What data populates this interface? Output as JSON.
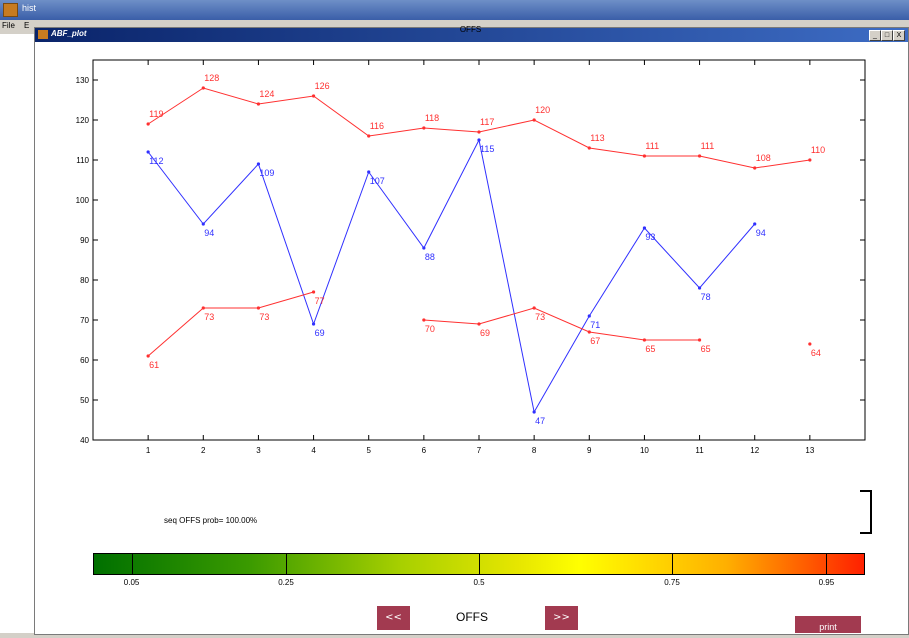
{
  "outer_window": {
    "title": "hist",
    "menu": [
      "File",
      "E"
    ]
  },
  "window": {
    "title": "ABF_plot",
    "controls": [
      "_",
      "□",
      "X"
    ]
  },
  "chart_data": {
    "type": "line",
    "title": "OFFS",
    "x": [
      1,
      2,
      3,
      4,
      5,
      6,
      7,
      8,
      9,
      10,
      11,
      12,
      13
    ],
    "xlim": [
      0,
      14
    ],
    "ylim": [
      40,
      135
    ],
    "yticks": [
      40,
      50,
      60,
      70,
      80,
      90,
      100,
      110,
      120,
      130
    ],
    "ytick_labels": [
      "40",
      "50",
      "60",
      "70",
      "80",
      "90",
      "100",
      "110",
      "120",
      "130"
    ],
    "xtick_labels": [
      "1",
      "2",
      "3",
      "4",
      "5",
      "6",
      "7",
      "8",
      "9",
      "10",
      "11",
      "12",
      "13"
    ],
    "grid": false,
    "series": [
      {
        "color": "#ff3030",
        "values": [
          119,
          128,
          124,
          126,
          116,
          118,
          117,
          120,
          113,
          111,
          111,
          108,
          110
        ],
        "labels": [
          "119",
          "128",
          "124",
          "126",
          "116",
          "118",
          "117",
          "120",
          "113",
          "111",
          "111",
          "108",
          "110"
        ]
      },
      {
        "color": "#3030ff",
        "values": [
          112,
          94,
          109,
          69,
          107,
          88,
          115,
          47,
          71,
          93,
          78,
          94,
          null
        ],
        "labels": [
          "112",
          "94",
          "109",
          "69",
          "107",
          "88",
          "115",
          "47",
          "71",
          "93",
          "78",
          "94",
          ""
        ]
      },
      {
        "color": "#ff3030",
        "values": [
          61,
          73,
          73,
          77,
          null,
          70,
          69,
          73,
          67,
          65,
          65,
          null,
          64
        ],
        "labels": [
          "61",
          "73",
          "73",
          "77",
          "",
          "70",
          "69",
          "73",
          "67",
          "65",
          "65",
          "",
          "64"
        ]
      }
    ]
  },
  "status": {
    "text": "seq OFFS prob= 100.00%"
  },
  "colorbar": {
    "ticks": [
      0.05,
      0.25,
      0.5,
      0.75,
      0.95
    ],
    "tick_labels": [
      "0.05",
      "0.25",
      "0.5",
      "0.75",
      "0.95"
    ],
    "colors": [
      "#007000",
      "#e6e600",
      "#ff2000"
    ]
  },
  "navigation": {
    "prev_label": "<<",
    "current_label": "OFFS",
    "next_label": ">>"
  },
  "print_button": {
    "label": "print"
  }
}
